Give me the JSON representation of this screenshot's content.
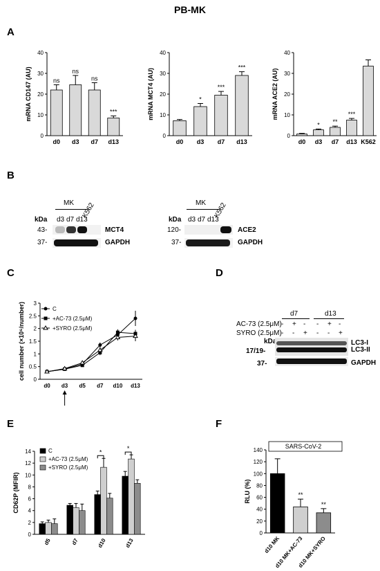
{
  "figure_title": "PB-MK",
  "panels": {
    "A": "A",
    "B": "B",
    "C": "C",
    "D": "D",
    "E": "E",
    "F": "F"
  },
  "colors": {
    "bar_light": "#d9d9d9",
    "bar_black": "#000000",
    "bar_grey": "#8c8c8c",
    "bar_lightgrey": "#cfcfcf"
  },
  "chart_data": [
    {
      "id": "A1",
      "type": "bar",
      "ylabel": "mRNA CD147 (AU)",
      "ylim": [
        0,
        40
      ],
      "yticks": [
        0,
        10,
        20,
        30,
        40
      ],
      "categories": [
        "d0",
        "d3",
        "d7",
        "d13"
      ],
      "values": [
        22,
        24.5,
        22,
        8.5
      ],
      "errors": [
        2.5,
        4.5,
        3.5,
        1
      ],
      "annotations": [
        "ns",
        "ns",
        "ns",
        "***"
      ]
    },
    {
      "id": "A2",
      "type": "bar",
      "ylabel": "mRNA MCT4 (AU)",
      "ylim": [
        0,
        40
      ],
      "yticks": [
        0,
        10,
        20,
        30,
        40
      ],
      "categories": [
        "d0",
        "d3",
        "d7",
        "d13"
      ],
      "values": [
        7.2,
        14,
        19.5,
        29
      ],
      "errors": [
        0.6,
        1.5,
        1.8,
        1.8
      ],
      "annotations": [
        "",
        "*",
        "***",
        "***"
      ]
    },
    {
      "id": "A3",
      "type": "bar",
      "ylabel": "mRNA ACE2 (AU)",
      "ylim": [
        0,
        40
      ],
      "yticks": [
        0,
        10,
        20,
        30,
        40
      ],
      "categories": [
        "d0",
        "d3",
        "d7",
        "d13",
        "K562"
      ],
      "values": [
        0.8,
        2.8,
        4,
        7.5,
        33.5
      ],
      "errors": [
        0.3,
        0.4,
        0.6,
        0.8,
        3
      ],
      "annotations": [
        "",
        "*",
        "**",
        "***",
        ""
      ]
    },
    {
      "id": "C",
      "type": "line",
      "ylabel": "cell number (×10⁶/number)",
      "ylim": [
        0,
        3
      ],
      "yticks": [
        0,
        0.5,
        1,
        1.5,
        2,
        2.5,
        3
      ],
      "categories": [
        "d0",
        "d3",
        "d5",
        "d7",
        "d10",
        "d13"
      ],
      "series": [
        {
          "name": "C",
          "values": [
            0.3,
            0.4,
            0.6,
            1.35,
            1.75,
            2.4
          ],
          "errors": [
            0.03,
            0.03,
            0.08,
            0.1,
            0.15,
            0.3
          ],
          "marker": "circle"
        },
        {
          "name": "+AC-73 (2.5μM)",
          "values": [
            0.3,
            0.4,
            0.55,
            1.05,
            1.85,
            1.8
          ],
          "errors": [
            0.03,
            0.03,
            0.06,
            0.1,
            0.12,
            0.15
          ],
          "marker": "square"
        },
        {
          "name": "+SYRO (2.5μM)",
          "values": [
            0.3,
            0.42,
            0.65,
            1.15,
            1.65,
            1.7
          ],
          "errors": [
            0.03,
            0.03,
            0.06,
            0.1,
            0.12,
            0.2
          ],
          "marker": "triangle"
        }
      ],
      "arrow_at": "d3"
    },
    {
      "id": "E",
      "type": "bar",
      "ylabel": "CD62P (MFIR)",
      "ylim": [
        0,
        14
      ],
      "yticks": [
        0,
        2,
        4,
        6,
        8,
        10,
        12,
        14
      ],
      "categories": [
        "d5",
        "d7",
        "d10",
        "d13"
      ],
      "series": [
        {
          "name": "C",
          "values": [
            1.8,
            4.9,
            6.7,
            9.8
          ],
          "errors": [
            0.3,
            0.3,
            0.6,
            0.8
          ]
        },
        {
          "name": "+AC-73 (2.5μM)",
          "values": [
            2,
            4.5,
            11.3,
            12.7
          ],
          "errors": [
            0.4,
            0.7,
            1.5,
            0.7
          ]
        },
        {
          "name": "+SYRO (2.5μM)",
          "values": [
            1.8,
            4,
            6.1,
            8.6
          ],
          "errors": [
            0.8,
            1.1,
            0.8,
            0.6
          ]
        }
      ],
      "significance": [
        "",
        "",
        "*",
        "*"
      ]
    },
    {
      "id": "F",
      "type": "bar",
      "title": "SARS-CoV-2",
      "ylabel": "RLU (%)",
      "ylim": [
        0,
        140
      ],
      "yticks": [
        0,
        20,
        40,
        60,
        80,
        100,
        120,
        140
      ],
      "categories": [
        "d10 MK",
        "d10 MK+AC-73",
        "d10 MK+SYRO"
      ],
      "values": [
        100,
        44,
        34
      ],
      "errors": [
        25,
        13,
        7
      ],
      "annotations": [
        "",
        "**",
        "**"
      ]
    }
  ],
  "blotB": {
    "left": {
      "group": "MK",
      "lanes": [
        "d3",
        "d7",
        "d13",
        "K562"
      ],
      "kda": "kDa",
      "rows": [
        {
          "marker": "43-",
          "label": "MCT4"
        },
        {
          "marker": "37-",
          "label": "GAPDH"
        }
      ]
    },
    "right": {
      "group": "MK",
      "lanes": [
        "d3",
        "d7",
        "d13",
        "K562"
      ],
      "kda": "kDa",
      "rows": [
        {
          "marker": "120-",
          "label": "ACE2"
        },
        {
          "marker": "37-",
          "label": "GAPDH"
        }
      ]
    }
  },
  "blotD": {
    "groups": [
      "d7",
      "d13"
    ],
    "treatments": [
      {
        "label": "AC-73 (2.5μM)",
        "signs": [
          "-",
          "+",
          "-",
          "-",
          "+",
          "-"
        ]
      },
      {
        "label": "SYRO (2.5μM)",
        "signs": [
          "-",
          "-",
          "+",
          "-",
          "-",
          "+"
        ]
      }
    ],
    "kda": "kDa",
    "rows": [
      {
        "marker": "17/19-",
        "label1": "LC3-I",
        "label2": "LC3-II"
      },
      {
        "marker": "37-",
        "label1": "GAPDH",
        "label2": ""
      }
    ]
  }
}
